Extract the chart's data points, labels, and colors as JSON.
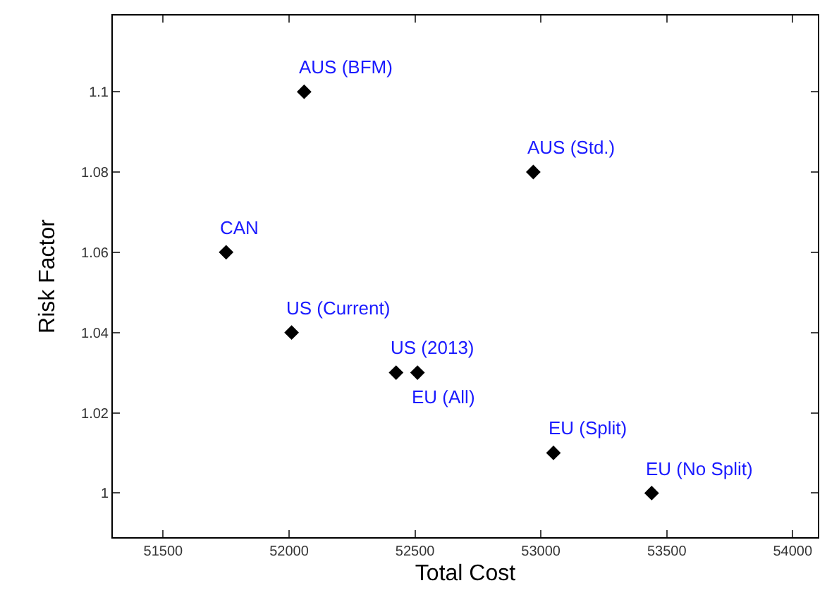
{
  "chart_data": {
    "type": "scatter",
    "xlabel": "Total Cost",
    "ylabel": "Risk Factor",
    "x": [
      52060,
      52970,
      51750,
      52010,
      52425,
      52510,
      53050,
      53440
    ],
    "series": [
      {
        "color": "#000000",
        "values": [
          1.1,
          1.08,
          1.06,
          1.04,
          1.03,
          1.03,
          1.01,
          1.0
        ]
      }
    ],
    "annotations": [
      {
        "text": "AUS (BFM)",
        "x": 52060,
        "y": 1.1
      },
      {
        "text": "AUS (Std.)",
        "x": 52970,
        "y": 1.08
      },
      {
        "text": "CAN",
        "x": 51750,
        "y": 1.06
      },
      {
        "text": "US (Current)",
        "x": 52010,
        "y": 1.04
      },
      {
        "text": "US (2013)",
        "x": 52425,
        "y": 1.03
      },
      {
        "text": "EU (All)",
        "x": 52510,
        "y": 1.03
      },
      {
        "text": "EU (Split)",
        "x": 53050,
        "y": 1.01
      },
      {
        "text": "EU (No Split)",
        "x": 53440,
        "y": 1.0
      }
    ],
    "xlim": [
      51300,
      54100
    ],
    "xticks": [
      51500,
      52000,
      52500,
      53000,
      53500,
      54000
    ],
    "ylim": [
      0.989,
      1.119
    ],
    "yticks": [
      1,
      1.02,
      1.04,
      1.06,
      1.08,
      1.1
    ],
    "marker": "diamond"
  }
}
